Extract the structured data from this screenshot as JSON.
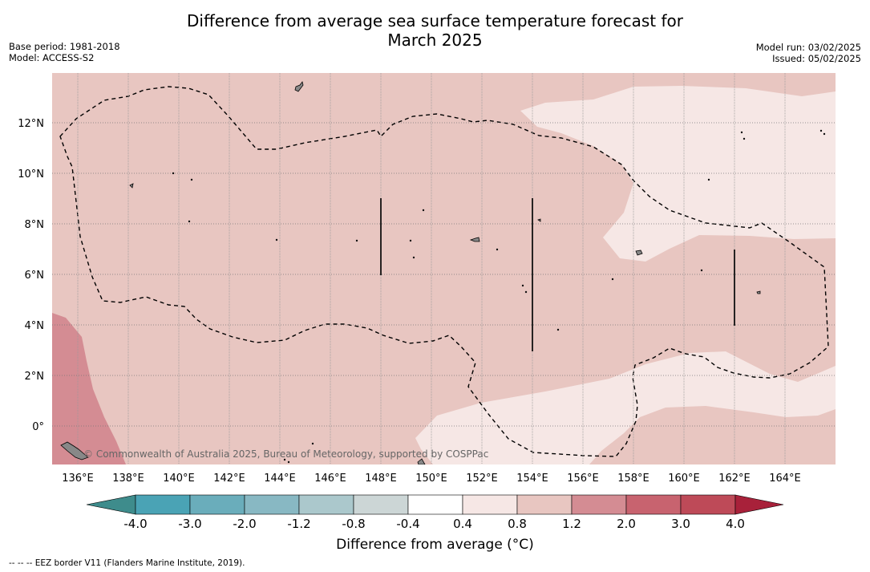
{
  "title": {
    "line1": "Difference from average sea surface temperature forecast for",
    "line2": "March 2025"
  },
  "meta": {
    "base_period": "Base period: 1981-2018",
    "model": "Model: ACCESS-S2",
    "model_run": "Model run: 03/02/2025",
    "issued": "Issued: 05/02/2025"
  },
  "map": {
    "lon_labels": [
      "136°E",
      "138°E",
      "140°E",
      "142°E",
      "144°E",
      "146°E",
      "148°E",
      "150°E",
      "152°E",
      "154°E",
      "156°E",
      "158°E",
      "160°E",
      "162°E",
      "164°E"
    ],
    "lat_labels": [
      "12°N",
      "10°N",
      "8°N",
      "6°N",
      "4°N",
      "2°N",
      "0°"
    ],
    "credit": "© Commonwealth of Australia 2025, Bureau of Meteorology, supported by COSPPac"
  },
  "colorbar": {
    "title": "Difference from average (°C)",
    "tick_labels": [
      "-4.0",
      "-3.0",
      "-2.0",
      "-1.2",
      "-0.8",
      "-0.4",
      "0.4",
      "0.8",
      "1.2",
      "2.0",
      "3.0",
      "4.0"
    ],
    "colors": [
      "#4aa3b5",
      "#6aadbb",
      "#88b8c3",
      "#abc8cc",
      "#ccd6d6",
      "#ffffff",
      "#f6e7e5",
      "#e8c6c1",
      "#d48c93",
      "#c8636f",
      "#be4a58"
    ],
    "under_color": "#3e8c8c",
    "over_color": "#a8213a"
  },
  "legend": {
    "eez_line": "-- -- -- EEZ border V11 (Flanders Marine Institute, 2019)."
  },
  "colors": {
    "anomaly_0_4_to_0_8": "#f6e7e5",
    "anomaly_0_8_to_1_2": "#e8c6c1",
    "anomaly_1_2_to_2_0": "#d48c93"
  }
}
